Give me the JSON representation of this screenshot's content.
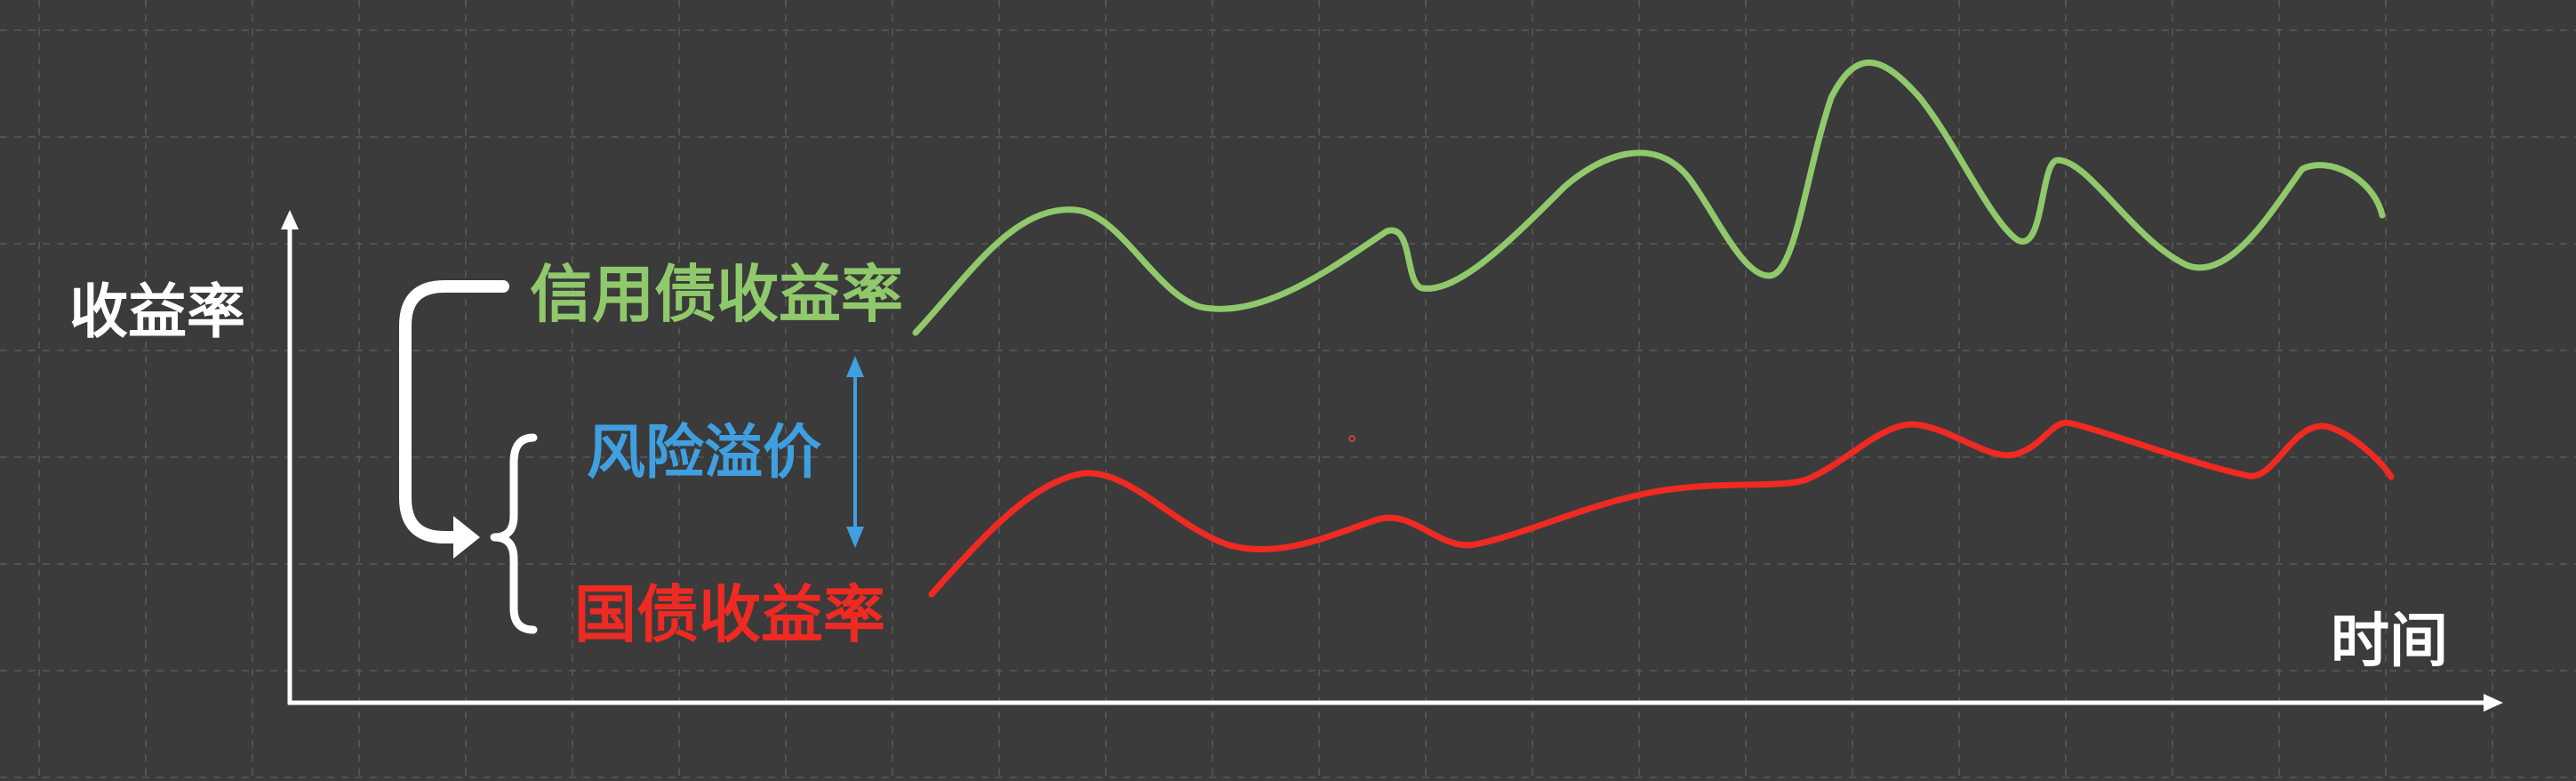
{
  "colors": {
    "background": "#3b3b3b",
    "grid": "#5a5a5a",
    "axis": "#ffffff",
    "credit": "#8fc96b",
    "spread": "#3f9fe0",
    "treasury": "#ee2a22",
    "bracket": "#ffffff"
  },
  "axes": {
    "y_label": "收益率",
    "x_label": "时间"
  },
  "labels": {
    "credit_yield": "信用债收益率",
    "risk_premium": "风险溢价",
    "treasury_yield": "国债收益率"
  }
}
